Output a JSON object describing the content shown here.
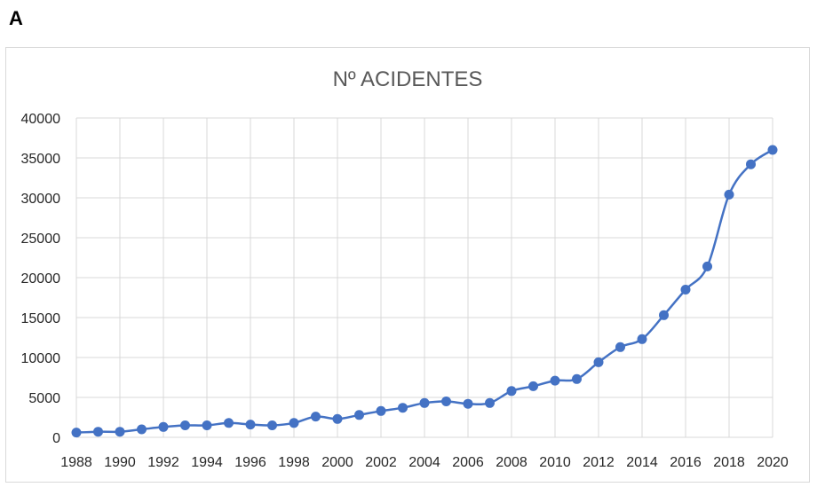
{
  "panel_label": "A",
  "chart_data": {
    "type": "line",
    "title": "Nº ACIDENTES",
    "xlabel": "",
    "ylabel": "",
    "ylim": [
      0,
      40000
    ],
    "xlim": [
      1988,
      2020
    ],
    "y_ticks": [
      "0",
      "5000",
      "10000",
      "15000",
      "20000",
      "25000",
      "30000",
      "35000",
      "40000"
    ],
    "x_ticks": [
      "1988",
      "1990",
      "1992",
      "1994",
      "1996",
      "1998",
      "2000",
      "2002",
      "2004",
      "2006",
      "2008",
      "2010",
      "2012",
      "2014",
      "2016",
      "2018",
      "2020"
    ],
    "grid": true,
    "legend": "none",
    "series_color": "#4472c4",
    "series": [
      {
        "x": [
          1988,
          1989,
          1990,
          1991,
          1992,
          1993,
          1994,
          1995,
          1996,
          1997,
          1998,
          1999,
          2000,
          2001,
          2002,
          2003,
          2004,
          2005,
          2006,
          2007,
          2008,
          2009,
          2010,
          2011,
          2012,
          2013,
          2014,
          2015,
          2016,
          2017,
          2018,
          2019,
          2020
        ],
        "values": [
          600,
          700,
          700,
          1000,
          1300,
          1500,
          1500,
          1800,
          1600,
          1500,
          1800,
          2600,
          2300,
          2800,
          3300,
          3700,
          4300,
          4500,
          4200,
          4300,
          5800,
          6400,
          7100,
          7300,
          9400,
          11300,
          12300,
          15300,
          18500,
          21400,
          30400,
          34200,
          36000
        ]
      }
    ]
  }
}
